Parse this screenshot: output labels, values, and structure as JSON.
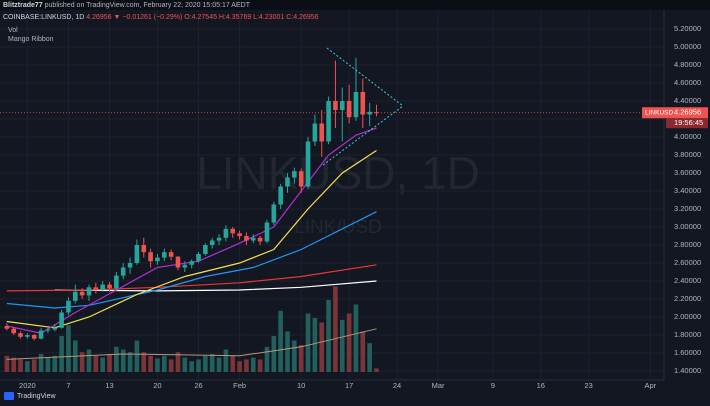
{
  "header": {
    "author": "Blitztrade77",
    "published": "published on TradingView.com, February 22, 2020 15:05:17 AEDT",
    "symbol": "COINBASE:LINKUSD, 1D",
    "last": "4.26956",
    "change": "▼ −0.01261 (−0.29%)",
    "ohlc": "O:4.27545 H:4.35769 L:4.23001 C:4.26956",
    "indicators": [
      "Vol",
      "Mango Ribbon"
    ],
    "brand": "TradingView"
  },
  "chart_data": {
    "type": "candlestick",
    "watermark": "LINKUSD, 1D",
    "watermark_sub": "LINK/USD",
    "x": [
      "2019-12-29",
      "2019-12-30",
      "2019-12-31",
      "2020-01-01",
      "2020-01-02",
      "2020-01-03",
      "2020-01-04",
      "2020-01-05",
      "2020-01-06",
      "2020-01-07",
      "2020-01-08",
      "2020-01-09",
      "2020-01-10",
      "2020-01-11",
      "2020-01-12",
      "2020-01-13",
      "2020-01-14",
      "2020-01-15",
      "2020-01-16",
      "2020-01-17",
      "2020-01-18",
      "2020-01-19",
      "2020-01-20",
      "2020-01-21",
      "2020-01-22",
      "2020-01-23",
      "2020-01-24",
      "2020-01-25",
      "2020-01-26",
      "2020-01-27",
      "2020-01-28",
      "2020-01-29",
      "2020-01-30",
      "2020-01-31",
      "2020-02-01",
      "2020-02-02",
      "2020-02-03",
      "2020-02-04",
      "2020-02-05",
      "2020-02-06",
      "2020-02-07",
      "2020-02-08",
      "2020-02-09",
      "2020-02-10",
      "2020-02-11",
      "2020-02-12",
      "2020-02-13",
      "2020-02-14",
      "2020-02-15",
      "2020-02-16",
      "2020-02-17",
      "2020-02-18",
      "2020-02-19",
      "2020-02-20",
      "2020-02-21"
    ],
    "open": [
      1.9,
      1.87,
      1.82,
      1.78,
      1.8,
      1.76,
      1.85,
      1.86,
      1.88,
      2.05,
      2.18,
      2.28,
      2.24,
      2.33,
      2.3,
      2.36,
      2.32,
      2.46,
      2.55,
      2.6,
      2.8,
      2.72,
      2.62,
      2.66,
      2.72,
      2.67,
      2.55,
      2.58,
      2.62,
      2.7,
      2.8,
      2.85,
      2.88,
      2.98,
      2.93,
      2.9,
      2.85,
      2.88,
      2.84,
      3.05,
      3.25,
      3.45,
      3.55,
      3.62,
      3.45,
      3.95,
      4.15,
      3.95,
      4.4,
      4.3,
      4.4,
      4.22,
      4.5,
      4.25,
      4.27545
    ],
    "high": [
      1.93,
      1.89,
      1.84,
      1.82,
      1.81,
      1.88,
      1.89,
      1.92,
      2.08,
      2.22,
      2.36,
      2.32,
      2.36,
      2.38,
      2.4,
      2.39,
      2.5,
      2.6,
      2.66,
      2.86,
      2.88,
      2.76,
      2.7,
      2.76,
      2.75,
      2.68,
      2.62,
      2.64,
      2.72,
      2.82,
      2.88,
      2.92,
      3.02,
      3.0,
      2.96,
      2.94,
      2.92,
      2.9,
      3.08,
      3.28,
      3.48,
      3.6,
      3.66,
      3.65,
      4.0,
      4.25,
      4.3,
      4.45,
      4.85,
      4.55,
      4.58,
      4.88,
      4.65,
      4.38,
      4.35769
    ],
    "low": [
      1.85,
      1.8,
      1.76,
      1.76,
      1.74,
      1.75,
      1.82,
      1.84,
      1.87,
      2.02,
      2.15,
      2.2,
      2.18,
      2.26,
      2.28,
      2.28,
      2.3,
      2.42,
      2.48,
      2.58,
      2.66,
      2.55,
      2.58,
      2.62,
      2.63,
      2.52,
      2.5,
      2.54,
      2.6,
      2.68,
      2.76,
      2.8,
      2.84,
      2.88,
      2.86,
      2.8,
      2.82,
      2.8,
      2.82,
      3.02,
      3.2,
      3.38,
      3.48,
      3.38,
      3.42,
      3.9,
      3.78,
      3.92,
      4.1,
      3.95,
      4.15,
      4.18,
      4.1,
      4.12,
      4.23001
    ],
    "close": [
      1.87,
      1.82,
      1.78,
      1.8,
      1.76,
      1.85,
      1.86,
      1.88,
      2.05,
      2.18,
      2.28,
      2.24,
      2.33,
      2.3,
      2.36,
      2.32,
      2.46,
      2.55,
      2.6,
      2.8,
      2.72,
      2.62,
      2.66,
      2.72,
      2.67,
      2.55,
      2.58,
      2.62,
      2.7,
      2.8,
      2.85,
      2.88,
      2.98,
      2.93,
      2.9,
      2.85,
      2.88,
      2.84,
      3.05,
      3.25,
      3.45,
      3.55,
      3.62,
      3.45,
      3.95,
      4.15,
      3.95,
      4.4,
      4.3,
      4.4,
      4.22,
      4.5,
      4.25,
      4.28,
      4.26956
    ],
    "volume": [
      18,
      16,
      14,
      12,
      14,
      20,
      16,
      18,
      40,
      52,
      35,
      22,
      25,
      18,
      16,
      20,
      28,
      25,
      22,
      35,
      22,
      18,
      15,
      18,
      14,
      22,
      16,
      12,
      14,
      18,
      20,
      16,
      25,
      18,
      12,
      14,
      16,
      14,
      28,
      40,
      68,
      45,
      35,
      30,
      65,
      60,
      55,
      80,
      95,
      58,
      65,
      75,
      45,
      32,
      4
    ],
    "vol_ylim": [
      0,
      100
    ],
    "up_color": "#26a69a",
    "down_color": "#ef5350",
    "volume_up_color": "#21605c",
    "volume_down_color": "#7b3538",
    "vol_ma": {
      "color": "#b89878",
      "x": [
        "2019-12-29",
        "2020-01-15",
        "2020-02-01",
        "2020-02-10",
        "2020-02-21"
      ],
      "values": [
        14,
        20,
        18,
        28,
        48
      ]
    },
    "ribbon": [
      {
        "color": "#ffffff",
        "x": [
          "2020-01-05",
          "2020-01-20",
          "2020-02-01",
          "2020-02-10",
          "2020-02-21"
        ],
        "values": [
          2.3,
          2.29,
          2.3,
          2.33,
          2.4
        ]
      },
      {
        "color": "#e53935",
        "x": [
          "2019-12-29",
          "2020-01-10",
          "2020-01-20",
          "2020-02-01",
          "2020-02-10",
          "2020-02-21"
        ],
        "values": [
          2.29,
          2.3,
          2.33,
          2.38,
          2.45,
          2.58
        ]
      },
      {
        "color": "#2196f3",
        "x": [
          "2019-12-29",
          "2020-01-05",
          "2020-01-10",
          "2020-01-20",
          "2020-01-27",
          "2020-02-03",
          "2020-02-10",
          "2020-02-21"
        ],
        "values": [
          2.15,
          2.1,
          2.13,
          2.3,
          2.45,
          2.55,
          2.75,
          3.17
        ]
      },
      {
        "color": "#f5e050",
        "x": [
          "2019-12-29",
          "2020-01-05",
          "2020-01-10",
          "2020-01-17",
          "2020-01-24",
          "2020-02-01",
          "2020-02-06",
          "2020-02-11",
          "2020-02-16",
          "2020-02-21"
        ],
        "values": [
          1.95,
          1.88,
          2.0,
          2.25,
          2.45,
          2.6,
          2.75,
          3.2,
          3.6,
          3.85
        ]
      },
      {
        "color": "#b030d0",
        "x": [
          "2019-12-29",
          "2020-01-03",
          "2020-01-08",
          "2020-01-14",
          "2020-01-20",
          "2020-01-26",
          "2020-02-01",
          "2020-02-06",
          "2020-02-10",
          "2020-02-14",
          "2020-02-18",
          "2020-02-21"
        ],
        "values": [
          1.9,
          1.82,
          2.05,
          2.3,
          2.55,
          2.62,
          2.82,
          3.0,
          3.4,
          3.8,
          4.02,
          4.1
        ]
      }
    ],
    "last_price": {
      "value": 4.26956,
      "label": "4.26956",
      "symbol": "LINKUSD",
      "countdown": "19:56:45",
      "color": "#ef5350"
    },
    "xlim": [
      "2019-12-28",
      "2020-04-03"
    ],
    "xticks": [
      {
        "value": "2020-01-01",
        "label": "2020"
      },
      {
        "value": "2020-01-07",
        "label": "7"
      },
      {
        "value": "2020-01-13",
        "label": "13"
      },
      {
        "value": "2020-01-20",
        "label": "20"
      },
      {
        "value": "2020-01-26",
        "label": "26"
      },
      {
        "value": "2020-02-01",
        "label": "Feb"
      },
      {
        "value": "2020-02-10",
        "label": "10"
      },
      {
        "value": "2020-02-17",
        "label": "17"
      },
      {
        "value": "2020-02-24",
        "label": "24"
      },
      {
        "value": "2020-03-01",
        "label": "Mar"
      },
      {
        "value": "2020-03-09",
        "label": "9"
      },
      {
        "value": "2020-03-16",
        "label": "16"
      },
      {
        "value": "2020-03-23",
        "label": "23"
      },
      {
        "value": "2020-04-01",
        "label": "Apr"
      }
    ],
    "ylim": [
      1.3,
      5.3
    ],
    "yticks": [
      {
        "value": 1.4,
        "label": "1.40000"
      },
      {
        "value": 1.6,
        "label": "1.60000"
      },
      {
        "value": 1.8,
        "label": "1.80000"
      },
      {
        "value": 2.0,
        "label": "2.00000"
      },
      {
        "value": 2.2,
        "label": "2.20000"
      },
      {
        "value": 2.4,
        "label": "2.40000"
      },
      {
        "value": 2.6,
        "label": "2.60000"
      },
      {
        "value": 2.8,
        "label": "2.80000"
      },
      {
        "value": 3.0,
        "label": "3.00000"
      },
      {
        "value": 3.2,
        "label": "3.20000"
      },
      {
        "value": 3.4,
        "label": "3.40000"
      },
      {
        "value": 3.6,
        "label": "3.60000"
      },
      {
        "value": 3.8,
        "label": "3.80000"
      },
      {
        "value": 4.0,
        "label": "4.00000"
      },
      {
        "value": 4.2,
        "label": "4.20000"
      },
      {
        "value": 4.4,
        "label": "4.40000"
      },
      {
        "value": 4.6,
        "label": "4.60000"
      },
      {
        "value": 4.8,
        "label": "4.80000"
      },
      {
        "value": 5.0,
        "label": "5.00000"
      },
      {
        "value": 5.2,
        "label": "5.20000"
      }
    ],
    "grid": true
  }
}
